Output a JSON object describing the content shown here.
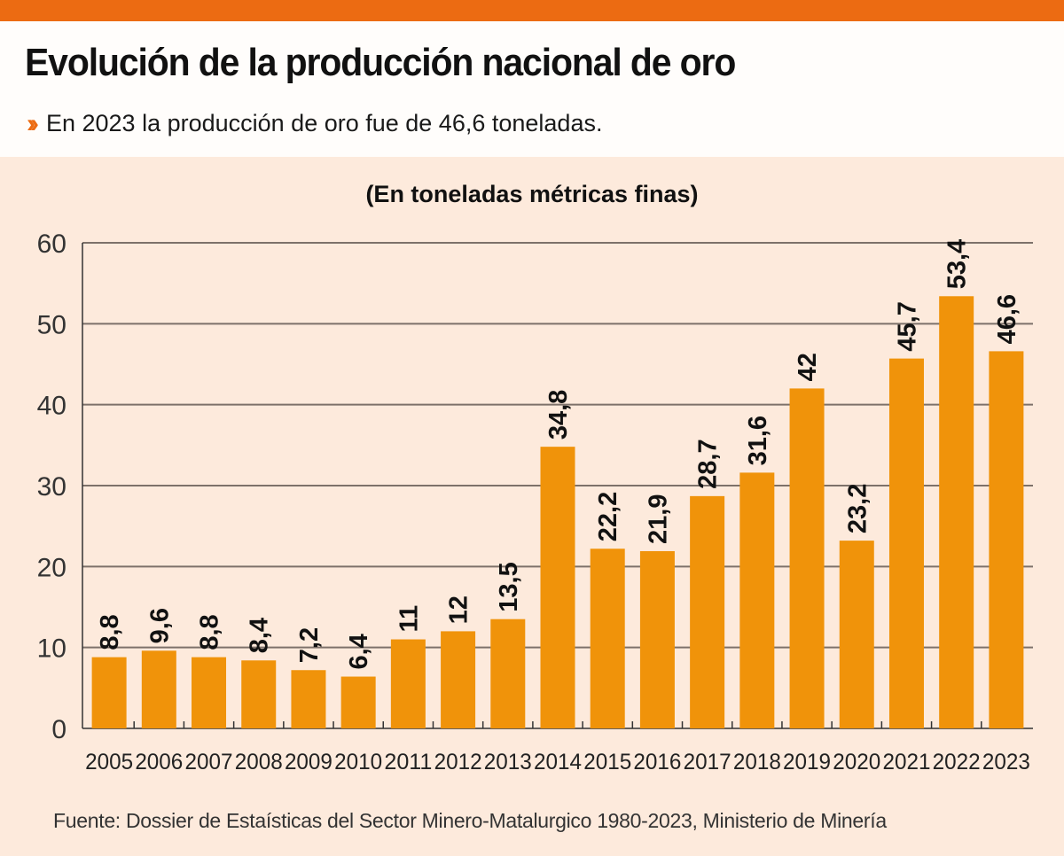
{
  "header": {
    "title": "Evolución de la producción nacional de oro",
    "subtitle_icon": "double-chevron-right-icon",
    "subtitle": "En 2023 la producción de oro fue de 46,6 toneladas.",
    "accent_color": "#ec6b12"
  },
  "chart_data": {
    "type": "bar",
    "title": "Evolución de la producción nacional de oro",
    "subtitle": "(En toneladas métricas finas)",
    "xlabel": "",
    "ylabel": "",
    "ylim": [
      0,
      60
    ],
    "yticks": [
      0,
      10,
      20,
      30,
      40,
      50,
      60
    ],
    "grid": true,
    "legend": "none",
    "bar_color": "#f0930a",
    "categories": [
      "2005",
      "2006",
      "2007",
      "2008",
      "2009",
      "2010",
      "2011",
      "2012",
      "2013",
      "2014",
      "2015",
      "2016",
      "2017",
      "2018",
      "2019",
      "2020",
      "2021",
      "2022",
      "2023"
    ],
    "values": [
      8.8,
      9.6,
      8.8,
      8.4,
      7.2,
      6.4,
      11,
      12,
      13.5,
      34.8,
      22.2,
      21.9,
      28.7,
      31.6,
      42,
      23.2,
      45.7,
      53.4,
      46.6
    ],
    "data_labels": [
      "8,8",
      "9,6",
      "8,8",
      "8,4",
      "7,2",
      "6,4",
      "11",
      "12",
      "13,5",
      "34,8",
      "22,2",
      "21,9",
      "28,7",
      "31,6",
      "42",
      "23,2",
      "45,7",
      "53,4",
      "46,6"
    ]
  },
  "footer": {
    "source": "Fuente: Dossier de Estaísticas del Sector Minero-Matalurgico 1980-2023, Ministerio de Minería"
  }
}
